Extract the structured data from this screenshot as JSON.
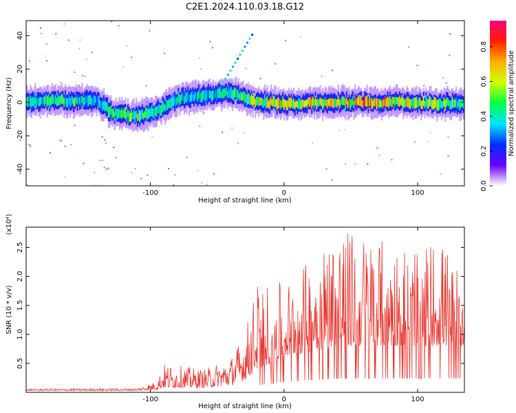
{
  "title": "C2E1.2024.110.03.18.G12",
  "chart_data": [
    {
      "type": "heatmap",
      "xlabel": "Height of straight line (km)",
      "ylabel": "Frequency (Hz)",
      "xlim": [
        -193,
        135
      ],
      "ylim": [
        -50,
        49
      ],
      "xticks": [
        -100,
        0,
        100
      ],
      "xtick_labels": [
        "-100",
        "0",
        "100"
      ],
      "yticks": [
        40,
        20,
        0,
        -20,
        -40
      ],
      "ytick_labels": [
        "40",
        "20",
        "0",
        "-20",
        "-40"
      ],
      "colorbar": {
        "label": "Normalized spectral amplitude",
        "range": [
          0,
          0.95
        ],
        "ticks": [
          0.0,
          0.2,
          0.4,
          0.6,
          0.8
        ],
        "tick_labels": [
          "0.0",
          "0.2",
          "0.4",
          "0.6",
          "0.8"
        ],
        "colormap": [
          "#ffffff",
          "#6a00ff",
          "#0030ff",
          "#00e5ff",
          "#00ff40",
          "#d0ff00",
          "#ffb000",
          "#ff2000",
          "#ff0080"
        ]
      },
      "ridge": [
        {
          "x": -193,
          "f": 1,
          "amp": 0.5
        },
        {
          "x": -160,
          "f": 1,
          "amp": 0.55
        },
        {
          "x": -140,
          "f": 1,
          "amp": 0.45
        },
        {
          "x": -128,
          "f": -7,
          "amp": 0.6
        },
        {
          "x": -110,
          "f": -8,
          "amp": 0.6
        },
        {
          "x": -95,
          "f": -5,
          "amp": 0.55
        },
        {
          "x": -80,
          "f": 2,
          "amp": 0.5
        },
        {
          "x": -60,
          "f": 4,
          "amp": 0.45
        },
        {
          "x": -40,
          "f": 6,
          "amp": 0.5
        },
        {
          "x": -25,
          "f": 1,
          "amp": 0.7
        },
        {
          "x": 0,
          "f": -1,
          "amp": 0.8
        },
        {
          "x": 30,
          "f": 0,
          "amp": 0.75
        },
        {
          "x": 60,
          "f": 0,
          "amp": 0.9
        },
        {
          "x": 90,
          "f": 0,
          "amp": 0.75
        },
        {
          "x": 135,
          "f": -1,
          "amp": 0.55
        }
      ]
    },
    {
      "type": "line",
      "xlabel": "Height of straight line (km)",
      "ylabel": "SNR (10 * v/v)",
      "y_multiplier": "(x10⁴)",
      "xlim": [
        -193,
        135
      ],
      "ylim": [
        0,
        2.85
      ],
      "xticks": [
        -100,
        0,
        100
      ],
      "xtick_labels": [
        "-100",
        "0",
        "100"
      ],
      "yticks": [
        0.5,
        1.0,
        1.5,
        2.0,
        2.5
      ],
      "ytick_labels": [
        "0.5",
        "1.0",
        "1.5",
        "2.0",
        "2.5"
      ],
      "series": [
        {
          "color": "#e8312a",
          "envelope": [
            {
              "x": -193,
              "base": 0.03,
              "max": 0.06
            },
            {
              "x": -110,
              "base": 0.03,
              "max": 0.07
            },
            {
              "x": -95,
              "base": 0.05,
              "max": 0.2
            },
            {
              "x": -90,
              "base": 0.08,
              "max": 0.5
            },
            {
              "x": -60,
              "base": 0.08,
              "max": 0.4
            },
            {
              "x": -40,
              "base": 0.12,
              "max": 0.6
            },
            {
              "x": -30,
              "base": 0.2,
              "max": 1.0
            },
            {
              "x": -20,
              "base": 0.4,
              "max": 1.9
            },
            {
              "x": 0,
              "base": 0.6,
              "max": 1.9
            },
            {
              "x": 20,
              "base": 0.7,
              "max": 2.3
            },
            {
              "x": 40,
              "base": 0.8,
              "max": 2.85
            },
            {
              "x": 80,
              "base": 0.8,
              "max": 2.6
            },
            {
              "x": 120,
              "base": 0.8,
              "max": 2.6
            },
            {
              "x": 135,
              "base": 0.8,
              "max": 1.8
            }
          ]
        }
      ]
    }
  ]
}
